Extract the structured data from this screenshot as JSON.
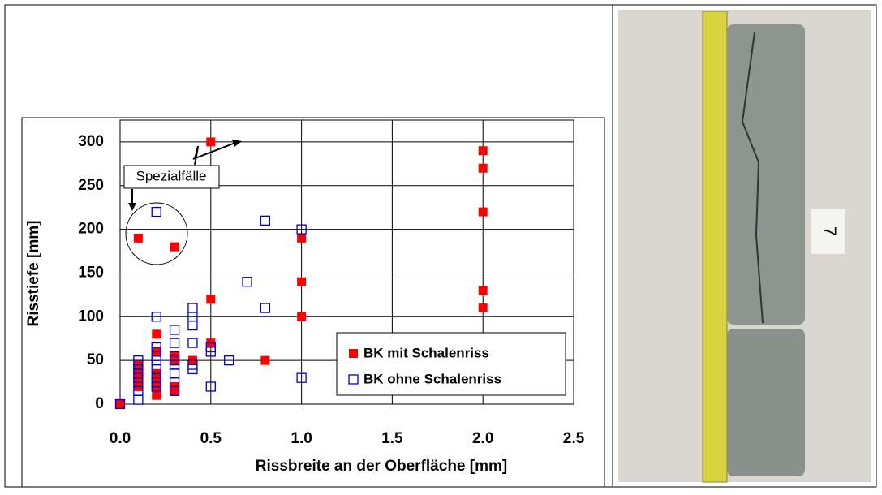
{
  "chart_data": {
    "type": "scatter",
    "xlabel": "Rissbreite an der Oberfläche [mm]",
    "ylabel": "Risstiefe [mm]",
    "xlim": [
      0,
      2.5
    ],
    "xticks": [
      {
        "value": 0,
        "label": "0.0"
      },
      {
        "value": 0.5,
        "label": "0.5"
      },
      {
        "value": 1,
        "label": "1.0"
      },
      {
        "value": 1.5,
        "label": "1.5"
      },
      {
        "value": 2,
        "label": "2.0"
      },
      {
        "value": 2.5,
        "label": "2.5"
      }
    ],
    "ylim": [
      0,
      325
    ],
    "yticks": [
      0,
      50,
      100,
      150,
      200,
      250,
      300
    ],
    "grid": true,
    "legend": "lower right",
    "annotations": [
      "Spezialfälle"
    ],
    "series": [
      {
        "name": "BK mit Schalenriss",
        "color": "#ff0000",
        "marker": "filled-square",
        "x": [
          0,
          0.1,
          0.1,
          0.1,
          0.1,
          0.1,
          0.2,
          0.2,
          0.2,
          0.2,
          0.2,
          0.2,
          0.3,
          0.3,
          0.3,
          0.3,
          0.3,
          0.4,
          0.5,
          0.5,
          0.5,
          0.8,
          1,
          1,
          1,
          2,
          2,
          2,
          2,
          2
        ],
        "values": [
          0,
          190,
          45,
          38,
          30,
          20,
          80,
          60,
          35,
          30,
          20,
          10,
          180,
          55,
          50,
          20,
          15,
          50,
          300,
          120,
          70,
          50,
          190,
          140,
          100,
          290,
          270,
          220,
          130,
          110
        ]
      },
      {
        "name": "BK ohne Schalenriss",
        "color": "#0000cc",
        "marker": "open-square",
        "x": [
          0,
          0.1,
          0.1,
          0.1,
          0.1,
          0.1,
          0.1,
          0.1,
          0.1,
          0.2,
          0.2,
          0.2,
          0.2,
          0.2,
          0.2,
          0.2,
          0.2,
          0.2,
          0.2,
          0.3,
          0.3,
          0.3,
          0.3,
          0.3,
          0.3,
          0.3,
          0.3,
          0.4,
          0.4,
          0.4,
          0.4,
          0.4,
          0.4,
          0.5,
          0.5,
          0.5,
          0.6,
          0.7,
          0.8,
          0.8,
          1,
          1
        ],
        "values": [
          0,
          50,
          45,
          40,
          35,
          30,
          25,
          15,
          5,
          220,
          100,
          65,
          60,
          55,
          50,
          40,
          30,
          25,
          20,
          85,
          70,
          55,
          50,
          45,
          35,
          25,
          15,
          110,
          100,
          90,
          70,
          45,
          40,
          65,
          60,
          20,
          50,
          140,
          210,
          110,
          200,
          30
        ]
      }
    ]
  },
  "photo": {
    "label": "7"
  }
}
